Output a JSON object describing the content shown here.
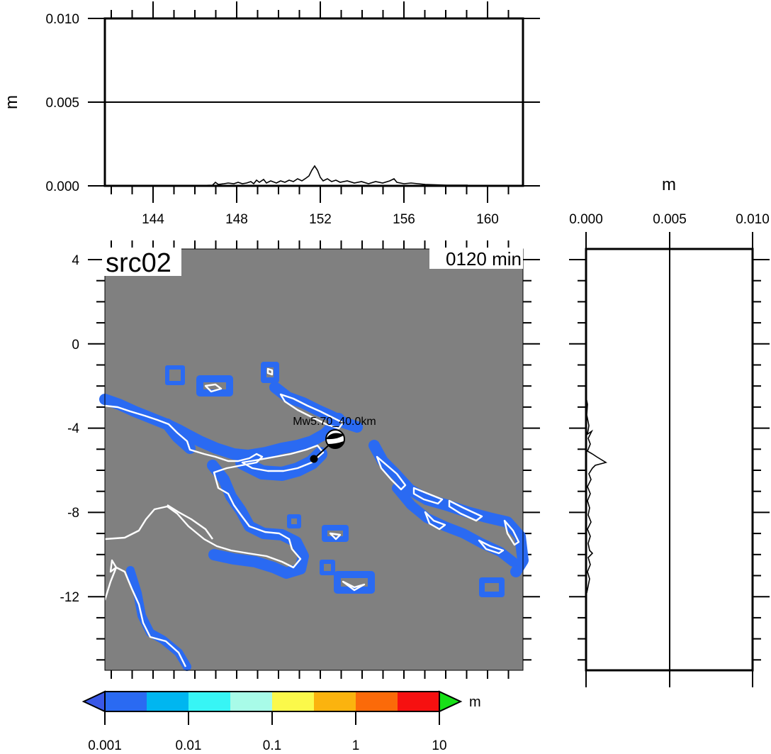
{
  "run_label": "src02",
  "time_label": "0120 min",
  "source_label": "Mw5.70_40.0km",
  "unit": "m",
  "top_profile": {
    "y_label": "m",
    "y_ticks": [
      "0.010",
      "0.005",
      "0.000"
    ],
    "x_ticks": [
      "144",
      "148",
      "152",
      "156",
      "160"
    ],
    "reference_line_value": "0.005"
  },
  "right_profile": {
    "x_label": "m",
    "x_ticks": [
      "0.000",
      "0.005",
      "0.010"
    ],
    "reference_line_value": "0.005"
  },
  "map": {
    "lat_ticks": [
      "4",
      "0",
      "-4",
      "-8",
      "-12"
    ],
    "background_color": "#808080",
    "coastline_color": "#ffffff",
    "wave_color": "#2a6af2"
  },
  "colorbar": {
    "unit": "m",
    "tick_labels": [
      "0.001",
      "0.01",
      "0.1",
      "1",
      "10"
    ],
    "colors": [
      "#2a6af2",
      "#00b6f0",
      "#37f5f5",
      "#a8fbe8",
      "#fbf94a",
      "#fbb30e",
      "#fb6a09",
      "#f61010"
    ],
    "under_color": "#3a58e6",
    "over_color": "#18e018"
  }
}
